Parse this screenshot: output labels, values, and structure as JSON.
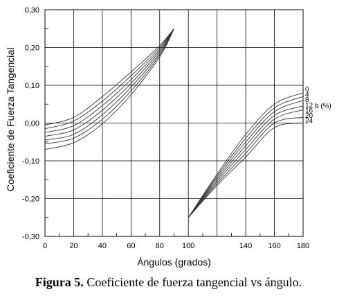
{
  "chart_data": {
    "type": "line",
    "xlabel": "Ángulos (grados)",
    "ylabel": "Coeficiente de Fuerza Tangencial",
    "xlim": [
      0,
      180
    ],
    "ylim": [
      -0.3,
      0.3
    ],
    "x_ticks": [
      0,
      20,
      40,
      60,
      80,
      100,
      140,
      160,
      180
    ],
    "x_tick_labels": [
      "0",
      "20",
      "40",
      "60",
      "80",
      "100",
      "140",
      "160",
      "180"
    ],
    "y_ticks": [
      -0.3,
      -0.2,
      -0.1,
      0.0,
      0.1,
      0.2,
      0.3
    ],
    "y_tick_labels": [
      "-0,30",
      "-0,20",
      "-0,10",
      "0,00",
      "0,10",
      "0,20",
      "0,30"
    ],
    "grid": true,
    "legend_title": "b (%)",
    "legend_position": "right",
    "series": [
      {
        "name": "0",
        "x": [
          0,
          20,
          40,
          60,
          80,
          90,
          100,
          120,
          140,
          160,
          180
        ],
        "y": [
          -0.005,
          0.015,
          0.07,
          0.135,
          0.205,
          0.25,
          -0.25,
          -0.135,
          -0.03,
          0.05,
          0.08
        ]
      },
      {
        "name": "4",
        "x": [
          0,
          20,
          40,
          60,
          80,
          90,
          100,
          120,
          140,
          160,
          180
        ],
        "y": [
          -0.015,
          0.005,
          0.058,
          0.125,
          0.2,
          0.25,
          -0.25,
          -0.14,
          -0.04,
          0.04,
          0.07
        ]
      },
      {
        "name": "8",
        "x": [
          0,
          20,
          40,
          60,
          80,
          90,
          100,
          120,
          140,
          160,
          180
        ],
        "y": [
          -0.025,
          -0.007,
          0.046,
          0.115,
          0.195,
          0.25,
          -0.25,
          -0.145,
          -0.05,
          0.03,
          0.06
        ]
      },
      {
        "name": "12",
        "x": [
          0,
          20,
          40,
          60,
          80,
          90,
          100,
          120,
          140,
          160,
          180
        ],
        "y": [
          -0.035,
          -0.018,
          0.034,
          0.105,
          0.19,
          0.25,
          -0.25,
          -0.15,
          -0.06,
          0.02,
          0.045
        ]
      },
      {
        "name": "16",
        "x": [
          0,
          20,
          40,
          60,
          80,
          90,
          100,
          120,
          140,
          160,
          180
        ],
        "y": [
          -0.045,
          -0.03,
          0.022,
          0.095,
          0.185,
          0.25,
          -0.25,
          -0.155,
          -0.07,
          0.01,
          0.035
        ]
      },
      {
        "name": "20",
        "x": [
          0,
          20,
          40,
          60,
          80,
          90,
          100,
          120,
          140,
          160,
          180
        ],
        "y": [
          -0.055,
          -0.04,
          0.01,
          0.085,
          0.18,
          0.25,
          -0.25,
          -0.16,
          -0.08,
          0.0,
          0.015
        ]
      },
      {
        "name": "24",
        "x": [
          0,
          20,
          40,
          60,
          80,
          90,
          100,
          120,
          140,
          160,
          180
        ],
        "y": [
          -0.07,
          -0.052,
          -0.002,
          0.075,
          0.175,
          0.25,
          -0.25,
          -0.165,
          -0.09,
          -0.012,
          0.0
        ]
      }
    ]
  },
  "caption": {
    "label": "Figura 5.",
    "text": " Coeficiente de fuerza tangencial vs ángulo."
  }
}
